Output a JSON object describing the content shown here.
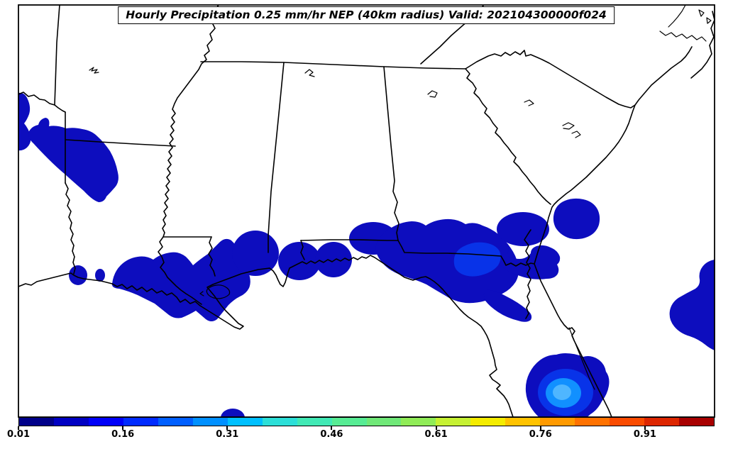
{
  "title": "Hourly Precipitation 0.25 mm/hr NEP (40km radius) Valid: 202104300000f024",
  "colorbar": {
    "tick_labels": [
      "0.01",
      "0.16",
      "0.31",
      "0.46",
      "0.61",
      "0.76",
      "0.91"
    ],
    "min_value": 0.01,
    "max_value": 1.01,
    "segment_colors": [
      "#000089",
      "#0000C3",
      "#0000F9",
      "#002BFF",
      "#005FFF",
      "#0090FF",
      "#00C0FF",
      "#2CDFD8",
      "#41E9B5",
      "#57EC94",
      "#70E878",
      "#90EC57",
      "#C6F133",
      "#F4EC00",
      "#FFC300",
      "#FF9A00",
      "#FF7200",
      "#FA4B00",
      "#DD2600",
      "#A80000"
    ]
  },
  "colors": {
    "background": "#FFFFFF",
    "outline": "#000000",
    "nep_low": "#0D0DBE",
    "nep_mid": "#0833E8",
    "nep_high": "#1190FF",
    "nep_peak": "#4FB6FF"
  },
  "map": {
    "region": "Southeastern United States",
    "content": "Filled NEP probability contours along the Gulf Coast, east Texas, coastal Georgia, Atlantic offshore and central/south Florida"
  }
}
